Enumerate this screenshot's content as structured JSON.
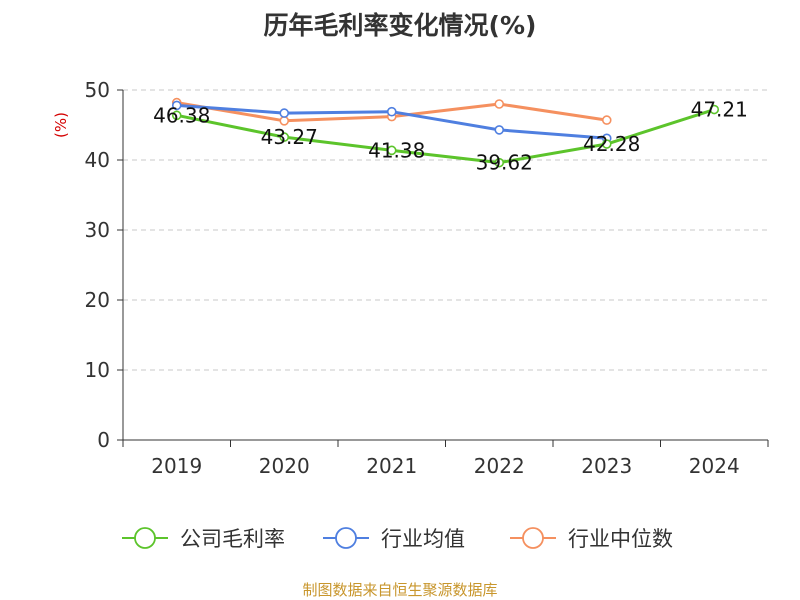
{
  "colors": {
    "gross_margin": "#5cc42b",
    "industry_avg": "#4f7fe0",
    "industry_median": "#f5905f",
    "unit_label": "#d40000",
    "source_text": "#c8962c"
  },
  "chart_data": {
    "type": "line",
    "title": "历年毛利率变化情况(%)",
    "ylabel": "(%)",
    "categories": [
      "2019",
      "2020",
      "2021",
      "2022",
      "2023",
      "2024"
    ],
    "ylim": [
      0,
      50
    ],
    "yticks": [
      0,
      10,
      20,
      30,
      40,
      50
    ],
    "grid": true,
    "legend_position": "bottom",
    "series": [
      {
        "name": "公司毛利率",
        "key": "gross_margin",
        "values": [
          46.38,
          43.27,
          41.38,
          39.62,
          42.28,
          47.21
        ],
        "show_labels": true
      },
      {
        "name": "行业均值",
        "key": "industry_avg",
        "values": [
          47.8,
          46.7,
          46.9,
          44.3,
          43.1,
          null
        ],
        "show_labels": false
      },
      {
        "name": "行业中位数",
        "key": "industry_median",
        "values": [
          48.2,
          45.6,
          46.2,
          48.0,
          45.7,
          null
        ],
        "show_labels": false
      }
    ]
  },
  "source": "制图数据来自恒生聚源数据库"
}
